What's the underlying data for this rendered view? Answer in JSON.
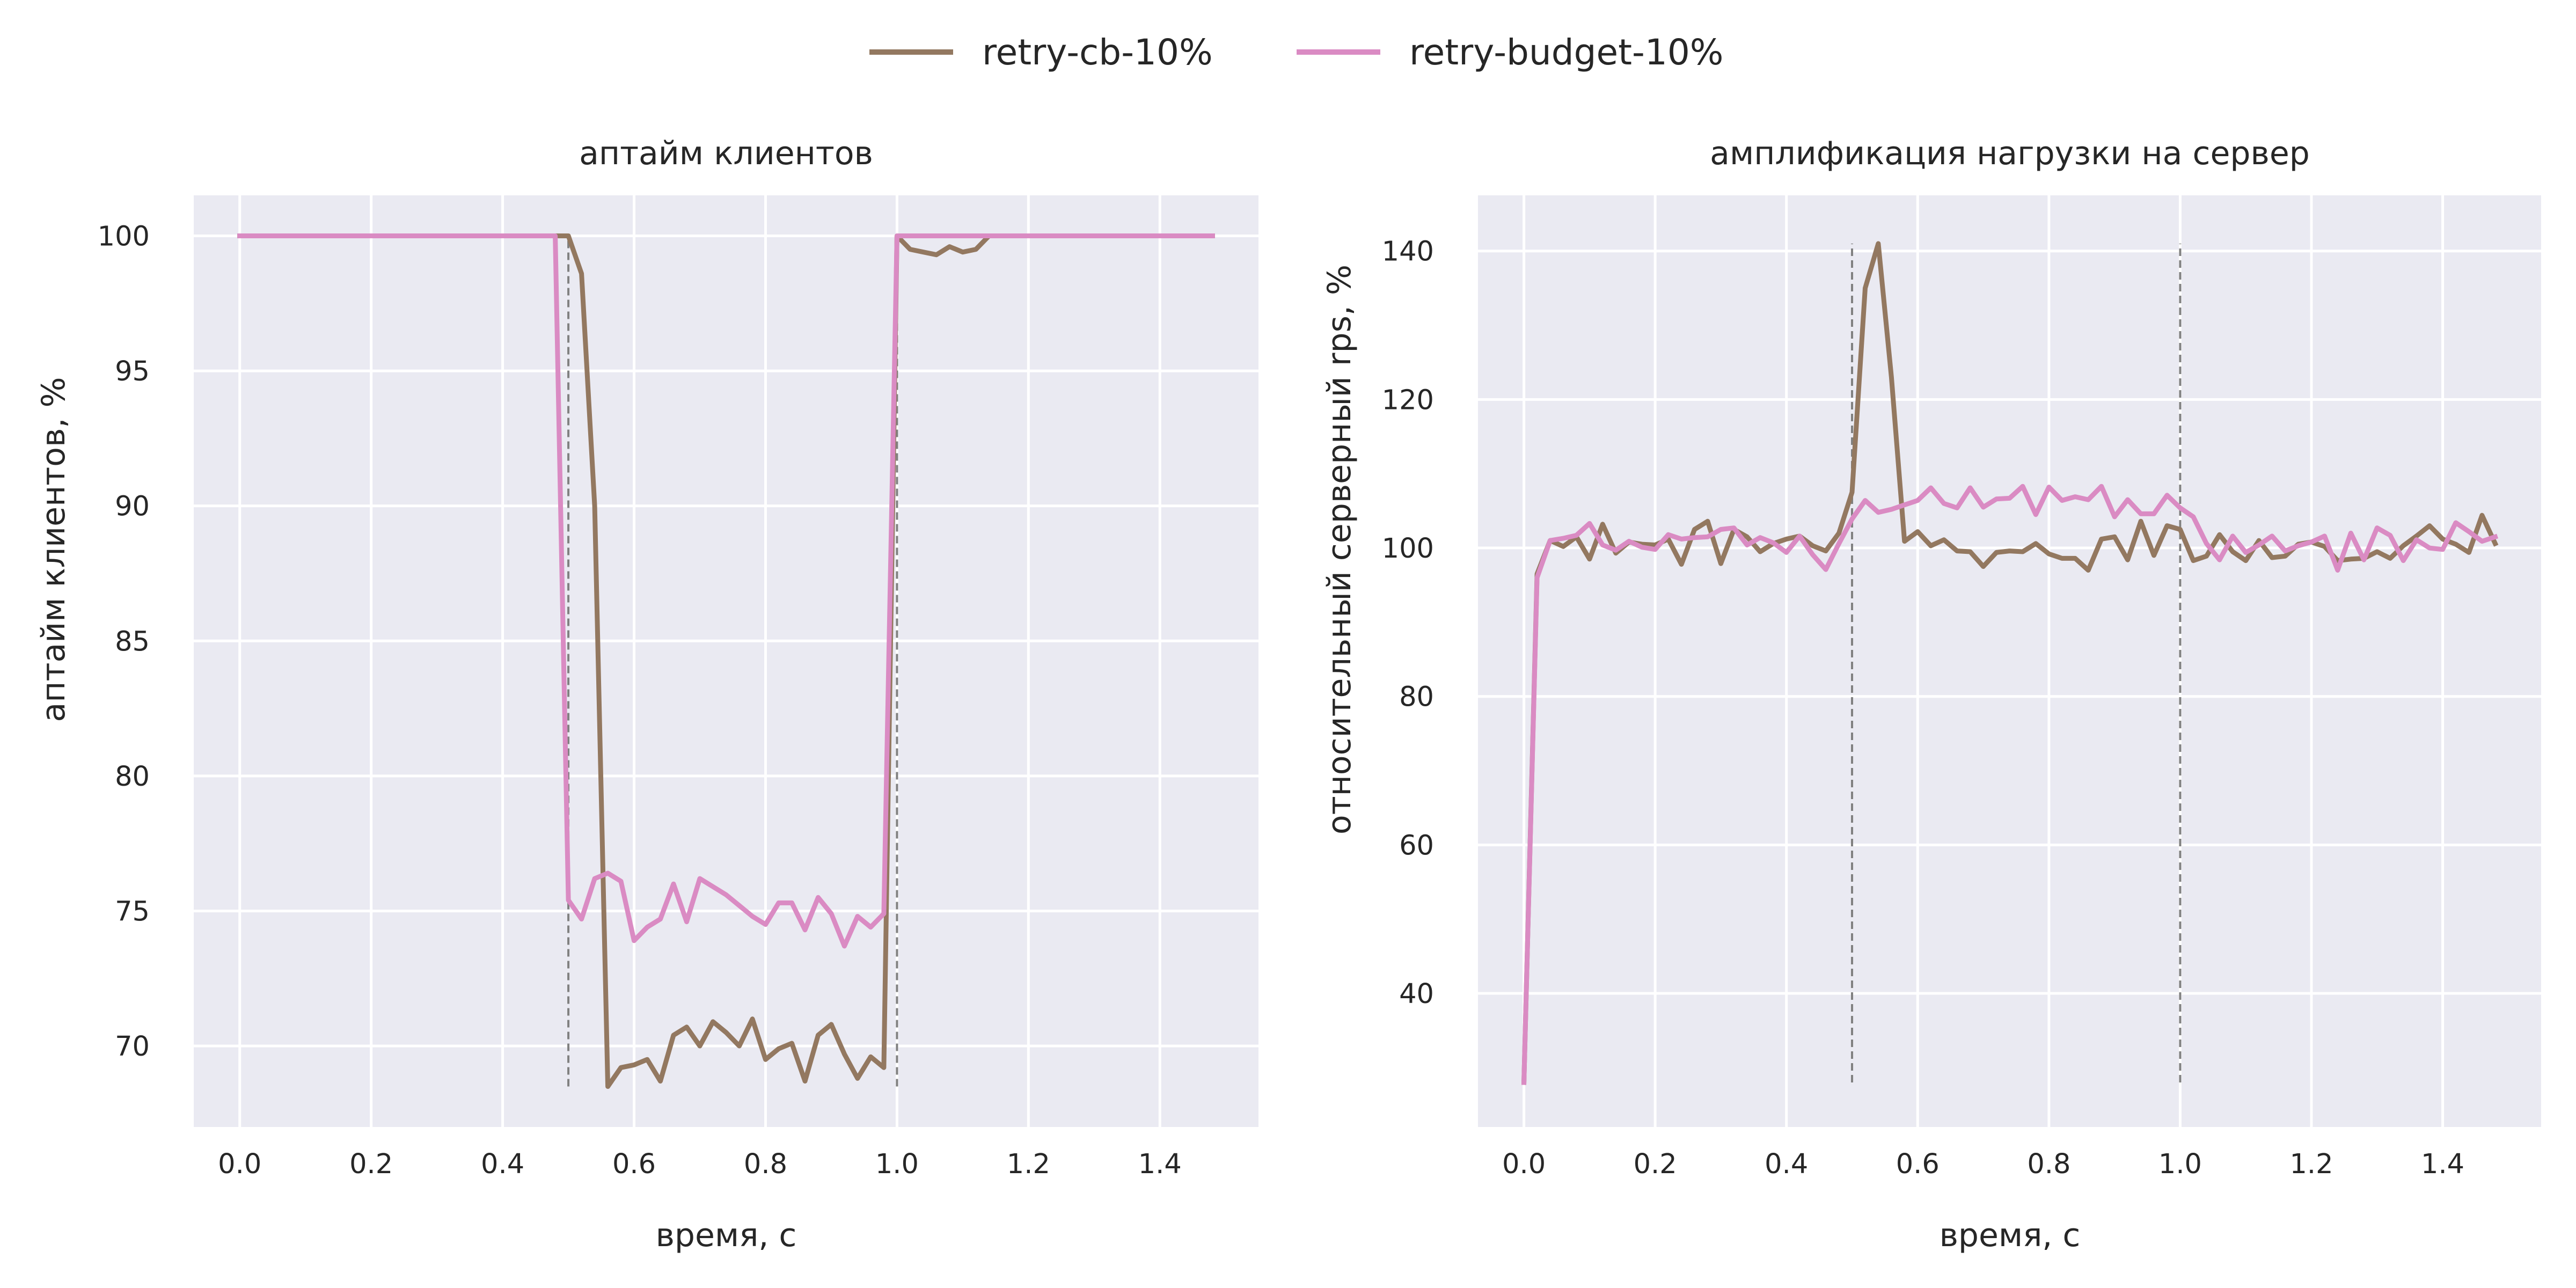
{
  "legend": [
    {
      "name": "retry-cb-10%",
      "color": "#937860"
    },
    {
      "name": "retry-budget-10%",
      "color": "#DA8BC3"
    }
  ],
  "style": {
    "plot_bg": "#EAEAF2",
    "grid": "#FFFFFF",
    "vline": "#808080"
  },
  "chart_data": [
    {
      "type": "line",
      "title": "аптайм клиентов",
      "xlabel": "время, с",
      "ylabel": "аптайм клиентов, %",
      "xlim": [
        -0.07,
        1.55
      ],
      "ylim": [
        67.0,
        101.5
      ],
      "xticks": [
        0.0,
        0.2,
        0.4,
        0.6,
        0.8,
        1.0,
        1.2,
        1.4
      ],
      "xtick_labels": [
        "0.0",
        "0.2",
        "0.4",
        "0.6",
        "0.8",
        "1.0",
        "1.2",
        "1.4"
      ],
      "yticks": [
        70,
        75,
        80,
        85,
        90,
        95,
        100
      ],
      "ytick_labels": [
        "70",
        "75",
        "80",
        "85",
        "90",
        "95",
        "100"
      ],
      "vlines": [
        {
          "x": 0.5,
          "y0": 68.5,
          "y1": 100.0
        },
        {
          "x": 1.0,
          "y0": 68.5,
          "y1": 100.0
        }
      ],
      "series": [
        {
          "name": "retry-cb-10%",
          "color": "#937860",
          "x": [
            0.0,
            0.48,
            0.5,
            0.52,
            0.54,
            0.56,
            0.58,
            0.6,
            0.62,
            0.64,
            0.66,
            0.68,
            0.7,
            0.72,
            0.74,
            0.76,
            0.78,
            0.8,
            0.82,
            0.84,
            0.86,
            0.88,
            0.9,
            0.92,
            0.94,
            0.96,
            0.98,
            1.0,
            1.02,
            1.04,
            1.06,
            1.08,
            1.1,
            1.12,
            1.14,
            1.16,
            1.48
          ],
          "y": [
            100.0,
            100.0,
            100.0,
            98.6,
            90.0,
            68.5,
            69.2,
            69.3,
            69.5,
            68.7,
            70.4,
            70.7,
            70.0,
            70.9,
            70.5,
            70.0,
            71.0,
            69.5,
            69.9,
            70.1,
            68.7,
            70.4,
            70.8,
            69.7,
            68.8,
            69.6,
            69.2,
            100.0,
            99.5,
            99.4,
            99.3,
            99.6,
            99.4,
            99.5,
            100.0,
            100.0,
            100.0
          ]
        },
        {
          "name": "retry-budget-10%",
          "color": "#DA8BC3",
          "x": [
            0.0,
            0.48,
            0.5,
            0.52,
            0.54,
            0.56,
            0.58,
            0.6,
            0.62,
            0.64,
            0.66,
            0.68,
            0.7,
            0.72,
            0.74,
            0.76,
            0.78,
            0.8,
            0.82,
            0.84,
            0.86,
            0.88,
            0.9,
            0.92,
            0.94,
            0.96,
            0.98,
            1.0,
            1.02,
            1.48
          ],
          "y": [
            100.0,
            100.0,
            75.4,
            74.7,
            76.2,
            76.4,
            76.1,
            73.9,
            74.4,
            74.7,
            76.0,
            74.6,
            76.2,
            75.9,
            75.6,
            75.2,
            74.8,
            74.5,
            75.3,
            75.3,
            74.3,
            75.5,
            74.9,
            73.7,
            74.8,
            74.4,
            74.9,
            100.0,
            100.0,
            100.0
          ]
        }
      ]
    },
    {
      "type": "line",
      "title": "амплификация нагрузки на сервер",
      "xlabel": "время, с",
      "ylabel": "относительный серверный rps, %",
      "xlim": [
        -0.07,
        1.55
      ],
      "ylim": [
        22.0,
        147.5
      ],
      "xticks": [
        0.0,
        0.2,
        0.4,
        0.6,
        0.8,
        1.0,
        1.2,
        1.4
      ],
      "xtick_labels": [
        "0.0",
        "0.2",
        "0.4",
        "0.6",
        "0.8",
        "1.0",
        "1.2",
        "1.4"
      ],
      "yticks": [
        40,
        60,
        80,
        100,
        120,
        140
      ],
      "ytick_labels": [
        "40",
        "60",
        "80",
        "100",
        "120",
        "140"
      ],
      "vlines": [
        {
          "x": 0.5,
          "y0": 28.0,
          "y1": 141.0
        },
        {
          "x": 1.0,
          "y0": 28.0,
          "y1": 141.0
        }
      ],
      "series": [
        {
          "name": "retry-cb-10%",
          "color": "#937860",
          "x": [
            0.0,
            0.02,
            0.04,
            0.06,
            0.08,
            0.1,
            0.12,
            0.14,
            0.16,
            0.18,
            0.2,
            0.22,
            0.24,
            0.26,
            0.28,
            0.3,
            0.32,
            0.34,
            0.36,
            0.38,
            0.4,
            0.42,
            0.44,
            0.46,
            0.48,
            0.5,
            0.52,
            0.54,
            0.56,
            0.58,
            0.6,
            0.62,
            0.64,
            0.66,
            0.68,
            0.7,
            0.72,
            0.74,
            0.76,
            0.78,
            0.8,
            0.82,
            0.84,
            0.86,
            0.88,
            0.9,
            0.92,
            0.94,
            0.96,
            0.98,
            1.0,
            1.02,
            1.04,
            1.06,
            1.08,
            1.1,
            1.12,
            1.14,
            1.16,
            1.18,
            1.2,
            1.22,
            1.24,
            1.26,
            1.28,
            1.3,
            1.32,
            1.34,
            1.36,
            1.38,
            1.4,
            1.42,
            1.44,
            1.46,
            1.48
          ],
          "y": [
            28.0,
            96.5,
            101.0,
            100.2,
            101.5,
            98.5,
            103.2,
            99.3,
            100.8,
            100.5,
            100.4,
            101.2,
            97.8,
            102.5,
            103.6,
            97.9,
            102.5,
            101.5,
            99.5,
            100.6,
            101.2,
            101.6,
            100.3,
            99.6,
            102.0,
            107.5,
            135.0,
            141.0,
            123.0,
            100.9,
            102.2,
            100.3,
            101.1,
            99.6,
            99.5,
            97.5,
            99.4,
            99.6,
            99.5,
            100.6,
            99.2,
            98.6,
            98.6,
            97.0,
            101.2,
            101.5,
            98.4,
            103.6,
            99.0,
            103.0,
            102.5,
            98.3,
            98.9,
            101.8,
            99.5,
            98.3,
            101.0,
            98.7,
            98.9,
            100.5,
            100.8,
            100.2,
            98.3,
            98.5,
            98.6,
            99.5,
            98.6,
            100.3,
            101.6,
            103.0,
            101.2,
            100.5,
            99.4,
            104.4,
            100.6
          ]
        },
        {
          "name": "retry-budget-10%",
          "color": "#DA8BC3",
          "x": [
            0.0,
            0.02,
            0.04,
            0.06,
            0.08,
            0.1,
            0.12,
            0.14,
            0.16,
            0.18,
            0.2,
            0.22,
            0.24,
            0.26,
            0.28,
            0.3,
            0.32,
            0.34,
            0.36,
            0.38,
            0.4,
            0.42,
            0.44,
            0.46,
            0.48,
            0.5,
            0.52,
            0.54,
            0.56,
            0.58,
            0.6,
            0.62,
            0.64,
            0.66,
            0.68,
            0.7,
            0.72,
            0.74,
            0.76,
            0.78,
            0.8,
            0.82,
            0.84,
            0.86,
            0.88,
            0.9,
            0.92,
            0.94,
            0.96,
            0.98,
            1.0,
            1.02,
            1.04,
            1.06,
            1.08,
            1.1,
            1.12,
            1.14,
            1.16,
            1.18,
            1.2,
            1.22,
            1.24,
            1.26,
            1.28,
            1.3,
            1.32,
            1.34,
            1.36,
            1.38,
            1.4,
            1.42,
            1.44,
            1.46,
            1.48
          ],
          "y": [
            28.0,
            96.0,
            101.0,
            101.3,
            101.7,
            103.3,
            100.4,
            99.7,
            100.9,
            100.1,
            99.8,
            101.8,
            101.2,
            101.4,
            101.5,
            102.5,
            102.7,
            100.4,
            101.4,
            100.7,
            99.4,
            101.6,
            99.1,
            97.1,
            100.6,
            103.9,
            106.4,
            104.8,
            105.2,
            105.8,
            106.4,
            108.1,
            106.0,
            105.4,
            108.1,
            105.5,
            106.6,
            106.7,
            108.3,
            104.5,
            108.2,
            106.4,
            106.9,
            106.5,
            108.3,
            104.2,
            106.5,
            104.6,
            104.6,
            107.1,
            105.4,
            104.2,
            100.6,
            98.4,
            101.6,
            99.4,
            100.4,
            101.6,
            99.6,
            100.3,
            100.8,
            101.6,
            97.0,
            102.0,
            98.4,
            102.7,
            101.7,
            98.3,
            101.1,
            100.0,
            99.8,
            103.4,
            102.2,
            100.9,
            101.5
          ]
        }
      ]
    }
  ]
}
